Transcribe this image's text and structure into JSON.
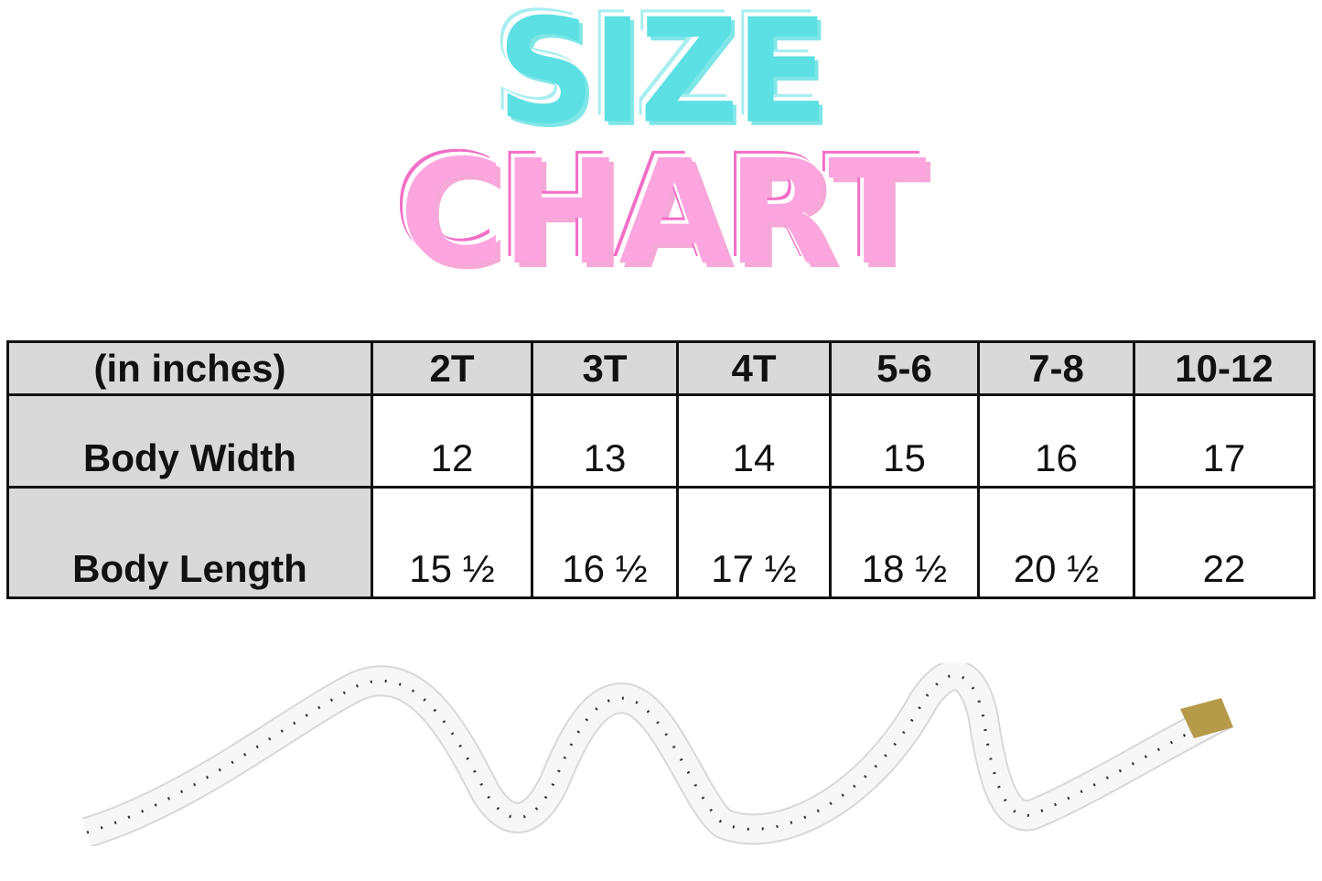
{
  "title": {
    "line1": "SIZE",
    "line2": "CHART",
    "line1_color": "#5ce0e3",
    "line2_color": "#fca5de"
  },
  "table": {
    "headers": [
      "(in inches)",
      "2T",
      "3T",
      "4T",
      "5-6",
      "7-8",
      "10-12"
    ],
    "rows": [
      {
        "label": "Body Width",
        "values": [
          "12",
          "13",
          "14",
          "15",
          "16",
          "17"
        ]
      },
      {
        "label": "Body Length",
        "values": [
          "15 ½",
          "16 ½",
          "17 ½",
          "18 ½",
          "20 ½",
          "22"
        ]
      }
    ]
  },
  "image": {
    "icon": "measuring-tape-icon"
  }
}
